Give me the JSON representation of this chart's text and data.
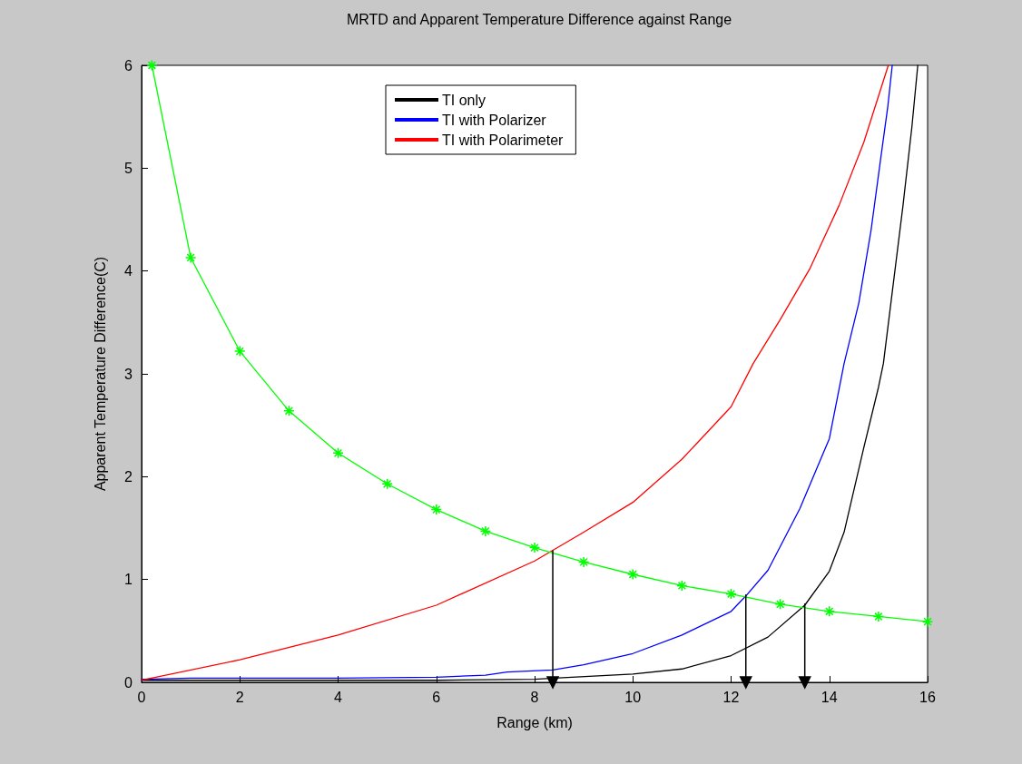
{
  "chart_data": {
    "type": "line",
    "title": "MRTD and Apparent Temperature Difference against Range",
    "xlabel": "Range (km)",
    "ylabel": "Apparent Temperature Difference(C)",
    "xlim": [
      0,
      16
    ],
    "ylim": [
      0,
      6
    ],
    "xticks": [
      0,
      2,
      4,
      6,
      8,
      10,
      12,
      14,
      16
    ],
    "yticks": [
      0,
      1,
      2,
      3,
      4,
      5,
      6
    ],
    "grid": false,
    "legend": "top",
    "line_style": "solid",
    "series": [
      {
        "name": "TI only",
        "color": "#000000",
        "marker": "none",
        "x": [
          0,
          2,
          4,
          6,
          8,
          8.4,
          10,
          11,
          12,
          12.75,
          13.5,
          14,
          14.3,
          14.7,
          15,
          15.1,
          15.3,
          15.5,
          15.68,
          15.8
        ],
        "values": [
          0.02,
          0.02,
          0.02,
          0.02,
          0.03,
          0.04,
          0.08,
          0.13,
          0.26,
          0.44,
          0.75,
          1.08,
          1.46,
          2.28,
          2.87,
          3.1,
          3.87,
          4.64,
          5.4,
          6
        ]
      },
      {
        "name": "TI with Polarizer",
        "color": "#0000ff",
        "marker": "none",
        "x": [
          0,
          1,
          4,
          6,
          7,
          7.44,
          8.37,
          9,
          10,
          11,
          12,
          12.3,
          12.75,
          13.4,
          14,
          14.3,
          14.6,
          14.85,
          15.03,
          15.19,
          15.28
        ],
        "values": [
          0.03,
          0.04,
          0.04,
          0.05,
          0.07,
          0.1,
          0.12,
          0.17,
          0.28,
          0.46,
          0.69,
          0.84,
          1.09,
          1.69,
          2.37,
          3.1,
          3.69,
          4.4,
          5.04,
          5.6,
          6
        ]
      },
      {
        "name": "TI with Polarimeter",
        "color": "#ff0000",
        "marker": "none",
        "x": [
          0,
          2,
          4,
          6,
          8,
          9,
          10,
          11,
          12,
          12.45,
          12.99,
          13.6,
          14.2,
          14.7,
          15.2
        ],
        "values": [
          0.02,
          0.22,
          0.46,
          0.75,
          1.18,
          1.46,
          1.75,
          2.17,
          2.68,
          3.1,
          3.52,
          4.02,
          4.64,
          5.25,
          6
        ]
      },
      {
        "color": "#00ff00",
        "marker": "cross",
        "x": [
          0.21,
          1,
          2,
          3,
          4,
          5,
          6,
          7,
          8,
          9,
          10,
          11,
          12,
          13,
          14,
          15,
          16
        ],
        "values": [
          6,
          4.13,
          3.22,
          2.64,
          2.23,
          1.93,
          1.68,
          1.47,
          1.31,
          1.17,
          1.05,
          0.94,
          0.86,
          0.76,
          0.69,
          0.64,
          0.59
        ]
      },
      {
        "color": "#000000",
        "marker": "triangle",
        "x": [
          8.37,
          8.37
        ],
        "values": [
          1.28,
          0
        ]
      },
      {
        "color": "#000000",
        "marker": "triangle",
        "x": [
          12.3,
          12.3
        ],
        "values": [
          0.85,
          0
        ]
      },
      {
        "color": "#000000",
        "marker": "triangle",
        "x": [
          13.5,
          13.5
        ],
        "values": [
          0.76,
          0
        ]
      }
    ]
  }
}
